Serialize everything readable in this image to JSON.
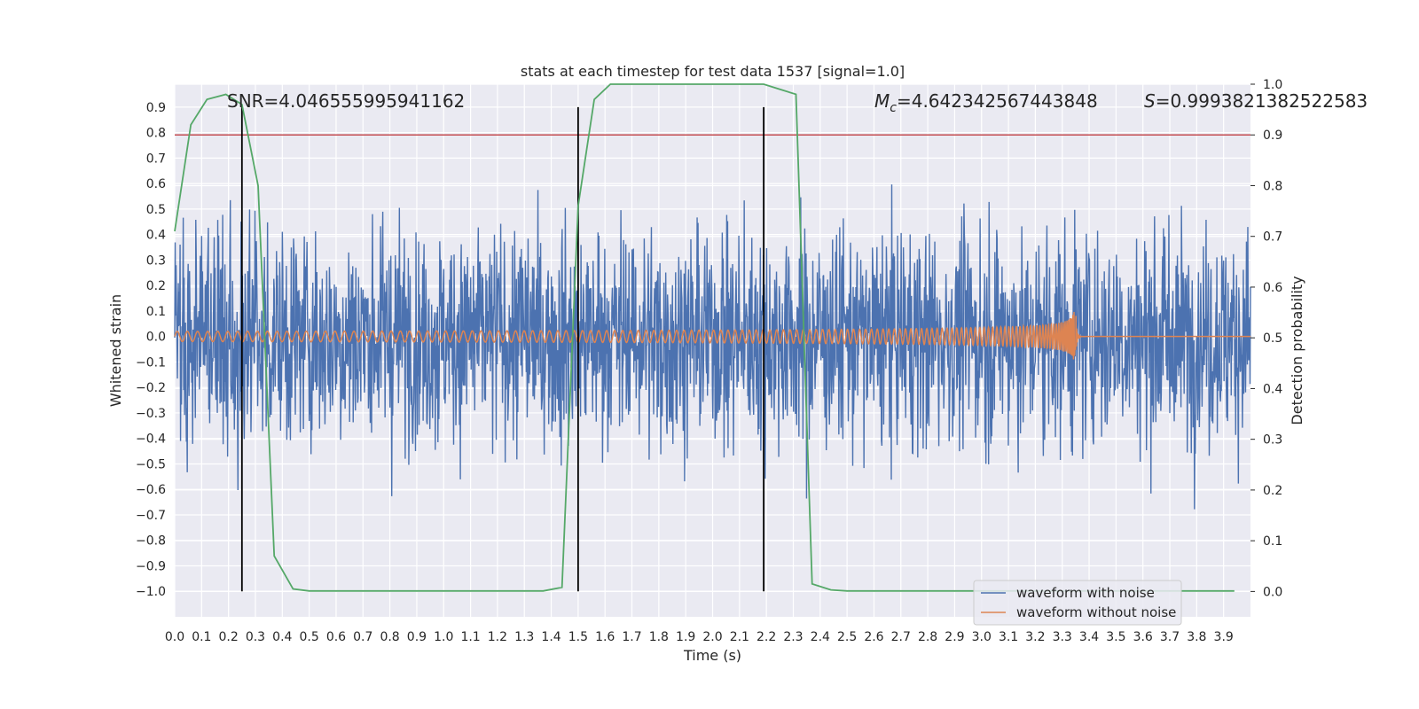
{
  "chart_data": {
    "type": "line",
    "title": "stats at each timestep for test data 1537 [signal=1.0]",
    "xlabel": "Time (s)",
    "ylabel": "Whitened strain",
    "ylabel_right": "Detection probability",
    "xlim": [
      0.0,
      4.0
    ],
    "ylim": [
      -1.1,
      0.99
    ],
    "ylim_right": [
      -0.05,
      1.0
    ],
    "x_ticks": [
      "0.0",
      "0.1",
      "0.2",
      "0.3",
      "0.4",
      "0.5",
      "0.6",
      "0.7",
      "0.8",
      "0.9",
      "1.0",
      "1.1",
      "1.2",
      "1.3",
      "1.4",
      "1.5",
      "1.6",
      "1.7",
      "1.8",
      "1.9",
      "2.0",
      "2.1",
      "2.2",
      "2.3",
      "2.4",
      "2.5",
      "2.6",
      "2.7",
      "2.8",
      "2.9",
      "3.0",
      "3.1",
      "3.2",
      "3.3",
      "3.4",
      "3.5",
      "3.6",
      "3.7",
      "3.8",
      "3.9"
    ],
    "y_ticks": [
      "0.9",
      "0.8",
      "0.7",
      "0.6",
      "0.5",
      "0.4",
      "0.3",
      "0.2",
      "0.1",
      "0.0",
      "−0.1",
      "−0.2",
      "−0.3",
      "−0.4",
      "−0.5",
      "−0.6",
      "−0.7",
      "−0.8",
      "−0.9",
      "−1.0"
    ],
    "y_ticks_right": [
      "1.0",
      "0.9",
      "0.8",
      "0.7",
      "0.6",
      "0.5",
      "0.4",
      "0.3",
      "0.2",
      "0.1",
      "0.0"
    ],
    "grid": true,
    "legend_position": "bottom-right",
    "series": [
      {
        "name": "waveform with noise",
        "color": "#4c72b0",
        "axis": "left",
        "style": "dense noise",
        "spread": 0.3,
        "peak_max": 0.9,
        "peak_min": -1.0
      },
      {
        "name": "waveform without noise",
        "color": "#dd8452",
        "axis": "left",
        "style": "chirp",
        "merger_time": 3.35,
        "amplitude_start": 0.02,
        "amplitude_peak": 0.1
      },
      {
        "name": "",
        "color": "#55a868",
        "axis": "right",
        "x": [
          0.0,
          0.06,
          0.12,
          0.19,
          0.25,
          0.31,
          0.37,
          0.44,
          0.5,
          0.56,
          0.62,
          0.69,
          0.75,
          0.81,
          0.87,
          0.94,
          1.0,
          1.06,
          1.12,
          1.19,
          1.25,
          1.31,
          1.37,
          1.44,
          1.5,
          1.56,
          1.62,
          1.69,
          1.75,
          1.81,
          1.87,
          1.94,
          2.0,
          2.06,
          2.12,
          2.19,
          2.25,
          2.31,
          2.37,
          2.44,
          2.5,
          2.56,
          2.62,
          2.69,
          2.75,
          2.81,
          2.87,
          2.94,
          3.0,
          3.06,
          3.12,
          3.19,
          3.25,
          3.31,
          3.37,
          3.44,
          3.5,
          3.56,
          3.62,
          3.69,
          3.75,
          3.81,
          3.87,
          3.94
        ],
        "values": [
          0.71,
          0.92,
          0.97,
          0.98,
          0.96,
          0.8,
          0.07,
          0.005,
          0.001,
          0.001,
          0.001,
          0.001,
          0.001,
          0.001,
          0.001,
          0.001,
          0.001,
          0.001,
          0.001,
          0.001,
          0.001,
          0.001,
          0.001,
          0.008,
          0.76,
          0.97,
          1.0,
          1.0,
          1.0,
          1.0,
          1.0,
          1.0,
          1.0,
          1.0,
          1.0,
          1.0,
          0.99,
          0.98,
          0.015,
          0.003,
          0.001,
          0.001,
          0.001,
          0.001,
          0.001,
          0.001,
          0.001,
          0.001,
          0.001,
          0.001,
          0.001,
          0.001,
          0.001,
          0.001,
          0.001,
          0.001,
          0.001,
          0.001,
          0.001,
          0.001,
          0.001,
          0.001,
          0.001,
          0.001
        ]
      }
    ],
    "threshold": {
      "axis": "right",
      "value": 0.9,
      "color": "#c44e52"
    },
    "vertical_lines": {
      "x": [
        0.25,
        1.5,
        2.19
      ],
      "y_top": 0.9,
      "y_bottom": -1.0,
      "color": "#000000"
    },
    "annotations": {
      "snr": "SNR=4.046555995941162",
      "mc_symbol": "M",
      "mc_sub": "c",
      "mc_value": "=4.642342567443848",
      "s_symbol": "S",
      "s_value": "=0.9993821382522583"
    }
  }
}
